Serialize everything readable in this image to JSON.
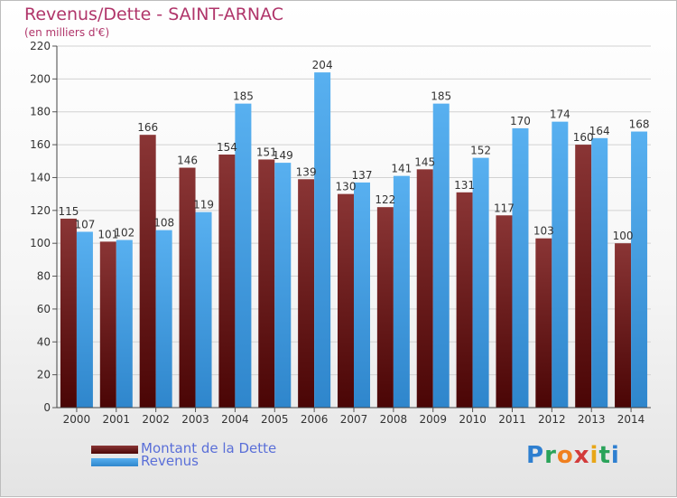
{
  "title": "Revenus/Dette - SAINT-ARNAC",
  "subtitle": "(en milliers d'€)",
  "brand": {
    "letters": [
      "P",
      "r",
      "o",
      "x",
      "i",
      "t",
      "i"
    ],
    "colors": [
      "#2e7fd0",
      "#2aa35a",
      "#f07f1e",
      "#d33b3b",
      "#e8a617",
      "#2aa35a",
      "#2e7fd0"
    ]
  },
  "legend": [
    {
      "label": "Montant de la Dette",
      "color": "#6e1a1a"
    },
    {
      "label": "Revenus",
      "color": "#4aa3e6"
    }
  ],
  "chart_data": {
    "type": "bar",
    "title": "Revenus/Dette - SAINT-ARNAC",
    "subtitle": "(en milliers d'€)",
    "categories": [
      "2000",
      "2001",
      "2002",
      "2003",
      "2004",
      "2005",
      "2006",
      "2007",
      "2008",
      "2009",
      "2010",
      "2011",
      "2012",
      "2013",
      "2014"
    ],
    "series": [
      {
        "name": "Montant de la Dette",
        "color": "#6e1a1a",
        "values": [
          115,
          101,
          166,
          146,
          154,
          151,
          139,
          130,
          122,
          145,
          131,
          117,
          103,
          160,
          100
        ]
      },
      {
        "name": "Revenus",
        "color": "#4aa3e6",
        "values": [
          107,
          102,
          108,
          119,
          185,
          149,
          204,
          137,
          141,
          185,
          152,
          170,
          174,
          164,
          168
        ]
      }
    ],
    "ylim": [
      0,
      220
    ],
    "yticks": [
      0,
      20,
      40,
      60,
      80,
      100,
      120,
      140,
      160,
      180,
      200,
      220
    ],
    "grid": true,
    "legend_position": "bottom-left"
  }
}
